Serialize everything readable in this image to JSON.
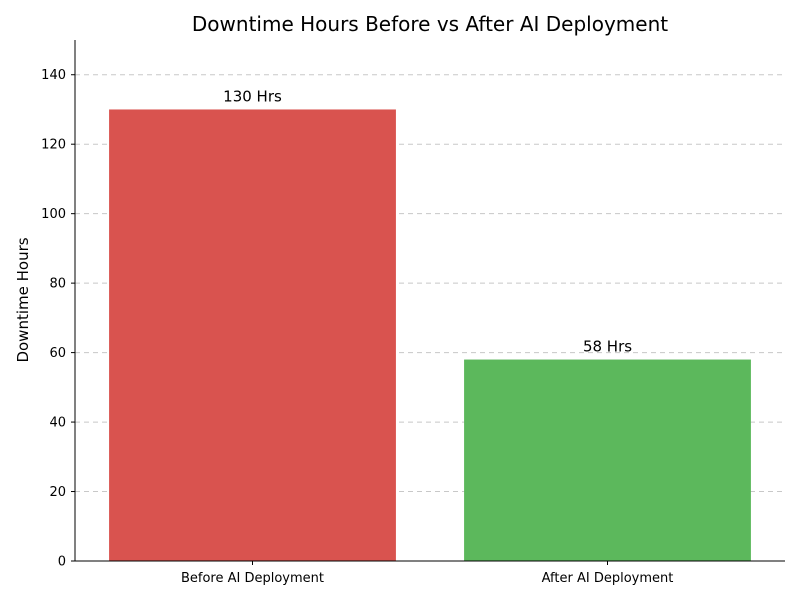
{
  "chart_data": {
    "type": "bar",
    "title": "Downtime Hours Before vs After AI Deployment",
    "xlabel": "",
    "ylabel": "Downtime Hours",
    "categories": [
      "Before AI Deployment",
      "After AI Deployment"
    ],
    "values": [
      130,
      58
    ],
    "value_labels": [
      "130 Hrs",
      "58 Hrs"
    ],
    "colors": [
      "#d9534f",
      "#5cb85c"
    ],
    "ylim": [
      0,
      150
    ],
    "yticks": [
      0,
      20,
      40,
      60,
      80,
      100,
      120,
      140
    ],
    "grid": "y-dashed"
  }
}
